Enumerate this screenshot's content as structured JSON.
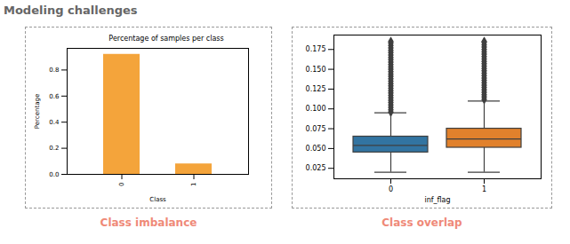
{
  "heading": "Modeling challenges",
  "chart_data": [
    {
      "type": "bar",
      "title": "Percentage of samples per class",
      "caption": "Class imbalance",
      "xlabel": "Class",
      "ylabel": "Percentage",
      "categories": [
        "0",
        "1"
      ],
      "values": [
        0.92,
        0.08
      ],
      "color": "#f4a43b",
      "ylim": [
        0,
        0.966
      ],
      "yticks": [
        {
          "value": 0,
          "label": "0.0"
        },
        0.2,
        0.4,
        0.6,
        0.8
      ]
    },
    {
      "type": "box",
      "caption": "Class overlap",
      "xlabel": "inf_flag",
      "categories": [
        "0",
        "1"
      ],
      "colors": [
        "#3274a1",
        "#e1812c"
      ],
      "stats": [
        {
          "whislo": 0.02,
          "q1": 0.045,
          "med": 0.054,
          "q3": 0.065,
          "whishi": 0.095,
          "outliers": [
            0.096,
            0.099,
            0.102,
            0.105,
            0.108,
            0.111,
            0.114,
            0.117,
            0.12,
            0.123,
            0.126,
            0.129,
            0.132,
            0.135,
            0.138,
            0.141,
            0.144,
            0.147,
            0.15,
            0.153,
            0.156,
            0.159,
            0.162,
            0.165,
            0.168,
            0.171,
            0.174,
            0.177,
            0.18,
            0.183,
            0.185
          ]
        },
        {
          "whislo": 0.02,
          "q1": 0.051,
          "med": 0.062,
          "q3": 0.075,
          "whishi": 0.11,
          "outliers": [
            0.112,
            0.115,
            0.118,
            0.121,
            0.124,
            0.127,
            0.13,
            0.133,
            0.136,
            0.139,
            0.142,
            0.145,
            0.148,
            0.151,
            0.154,
            0.157,
            0.16,
            0.163,
            0.166,
            0.169,
            0.172,
            0.175,
            0.178,
            0.181,
            0.184,
            0.185
          ]
        }
      ],
      "ylim": [
        0.0118,
        0.1932
      ],
      "yticks": [
        0.025,
        {
          "value": 0.05,
          "label": "0.050"
        },
        0.075,
        {
          "value": 0.1,
          "label": "0.100"
        },
        0.125,
        {
          "value": 0.15,
          "label": "0.150"
        },
        0.175
      ]
    }
  ]
}
